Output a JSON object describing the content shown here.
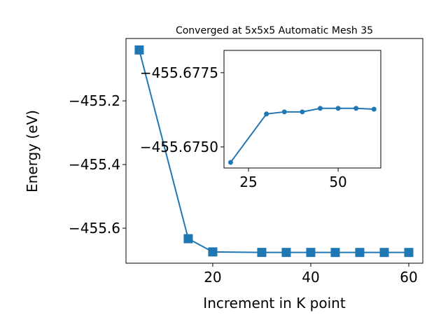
{
  "chart_data": [
    {
      "type": "line",
      "title": "Converged at 5x5x5 Automatic Mesh 35",
      "xlabel": "Increment in K point",
      "ylabel": "Energy (eV)",
      "x": [
        5,
        15,
        20,
        30,
        35,
        40,
        45,
        50,
        55,
        60
      ],
      "series": [
        {
          "color": "#1f77b4",
          "marker": "square",
          "values": [
            -455.04,
            -455.633,
            -455.6745,
            -455.6761,
            -455.6762,
            -455.6762,
            -455.6763,
            -455.6763,
            -455.6763,
            -455.6763
          ]
        }
      ],
      "xlim": [
        2.3,
        62.86
      ],
      "xticks": [
        20,
        40,
        60
      ],
      "ylim": [
        -455.71,
        -455.004
      ],
      "yticks": [
        {
          "value": -455.6,
          "label": "−455.6"
        },
        {
          "value": -455.4,
          "label": "−455.4"
        },
        {
          "value": -455.2,
          "label": "−455.2"
        }
      ]
    },
    {
      "type": "line",
      "x": [
        20,
        30,
        35,
        40,
        45,
        50,
        55,
        60
      ],
      "series": [
        {
          "color": "#1f77b4",
          "marker": "circle",
          "values": [
            -455.67448,
            -455.67611,
            -455.67618,
            -455.67618,
            -455.6763,
            -455.6763,
            -455.6763,
            -455.67627
          ]
        }
      ],
      "xlim": [
        18.16,
        61.9
      ],
      "xticks": [
        25,
        50
      ],
      "ylim": [
        -455.67429,
        -455.67825
      ],
      "yticks": [
        {
          "value": -455.675,
          "label": "−455.6750"
        },
        {
          "value": -455.6775,
          "label": "−455.6775"
        }
      ]
    }
  ]
}
